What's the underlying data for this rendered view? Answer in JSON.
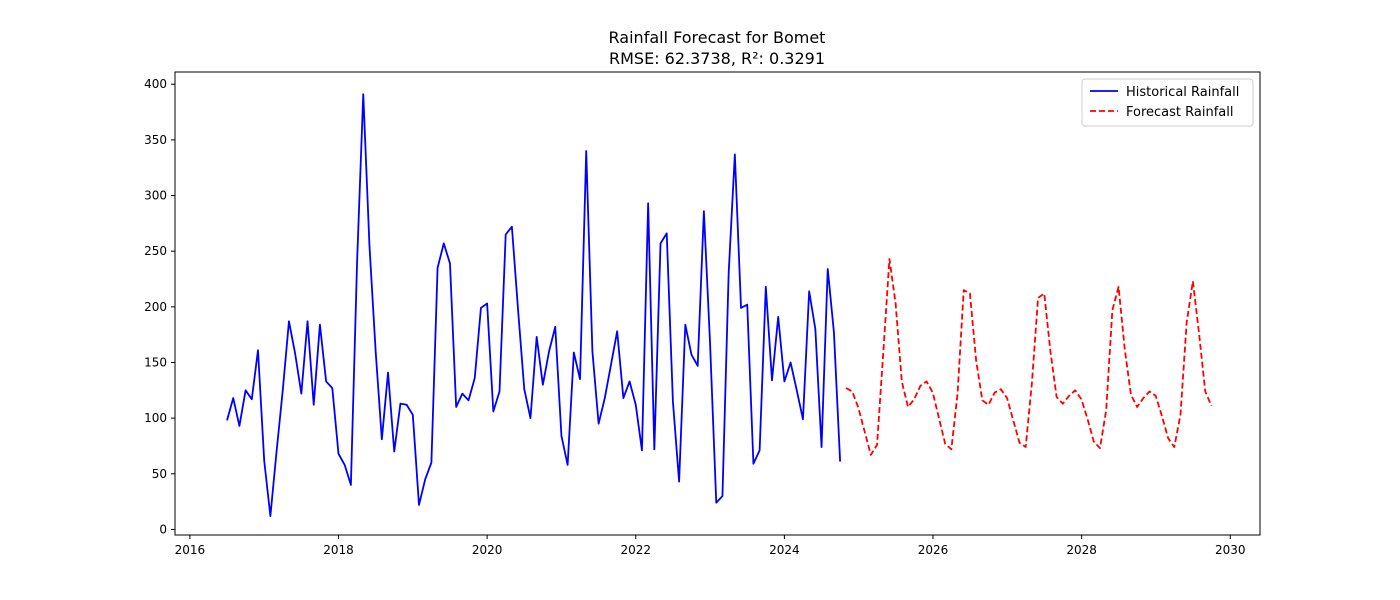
{
  "chart_data": {
    "type": "line",
    "title": "Rainfall Forecast for Bomet",
    "subtitle": "RMSE: 62.3738, R²: 0.3291",
    "xlabel": "",
    "ylabel": "",
    "xlim": [
      2015.8,
      2030.4
    ],
    "ylim": [
      -5,
      411
    ],
    "x_ticks": [
      2016,
      2018,
      2020,
      2022,
      2024,
      2026,
      2028,
      2030
    ],
    "y_ticks": [
      0,
      50,
      100,
      150,
      200,
      250,
      300,
      350,
      400
    ],
    "grid": false,
    "legend_position": "top-right",
    "series": [
      {
        "name": "Historical Rainfall",
        "color": "#0000ff",
        "style": "solid",
        "start": 2016.5,
        "step": 0.0833333,
        "values": [
          98,
          118,
          93,
          125,
          117,
          161,
          62,
          12,
          70,
          125,
          187,
          158,
          122,
          187,
          112,
          184,
          133,
          127,
          68,
          58,
          40,
          240,
          391,
          255,
          160,
          81,
          141,
          70,
          113,
          112,
          103,
          22,
          45,
          60,
          235,
          257,
          239,
          110,
          122,
          116,
          136,
          199,
          203,
          106,
          124,
          265,
          272,
          197,
          126,
          100,
          173,
          130,
          160,
          182,
          84,
          58,
          159,
          135,
          340,
          160,
          95,
          118,
          148,
          178,
          118,
          133,
          112,
          71,
          293,
          72,
          257,
          266,
          115,
          43,
          184,
          157,
          147,
          286,
          167,
          24,
          30,
          230,
          337,
          199,
          202,
          59,
          71,
          218,
          134,
          191,
          133,
          150,
          125,
          99,
          214,
          180,
          74,
          234,
          177,
          61
        ]
      },
      {
        "name": "Forecast Rainfall",
        "color": "#ff0000",
        "style": "dashed",
        "start": 2024.83,
        "step": 0.0833333,
        "values": [
          127,
          124,
          109,
          88,
          67,
          76,
          158,
          243,
          203,
          133,
          110,
          117,
          129,
          133,
          123,
          100,
          77,
          72,
          122,
          215,
          212,
          152,
          116,
          112,
          123,
          126,
          118,
          98,
          78,
          74,
          131,
          208,
          212,
          160,
          119,
          113,
          120,
          125,
          117,
          99,
          79,
          73,
          107,
          197,
          218,
          162,
          121,
          110,
          118,
          124,
          120,
          102,
          82,
          74,
          103,
          186,
          223,
          176,
          124,
          111
        ]
      }
    ]
  }
}
